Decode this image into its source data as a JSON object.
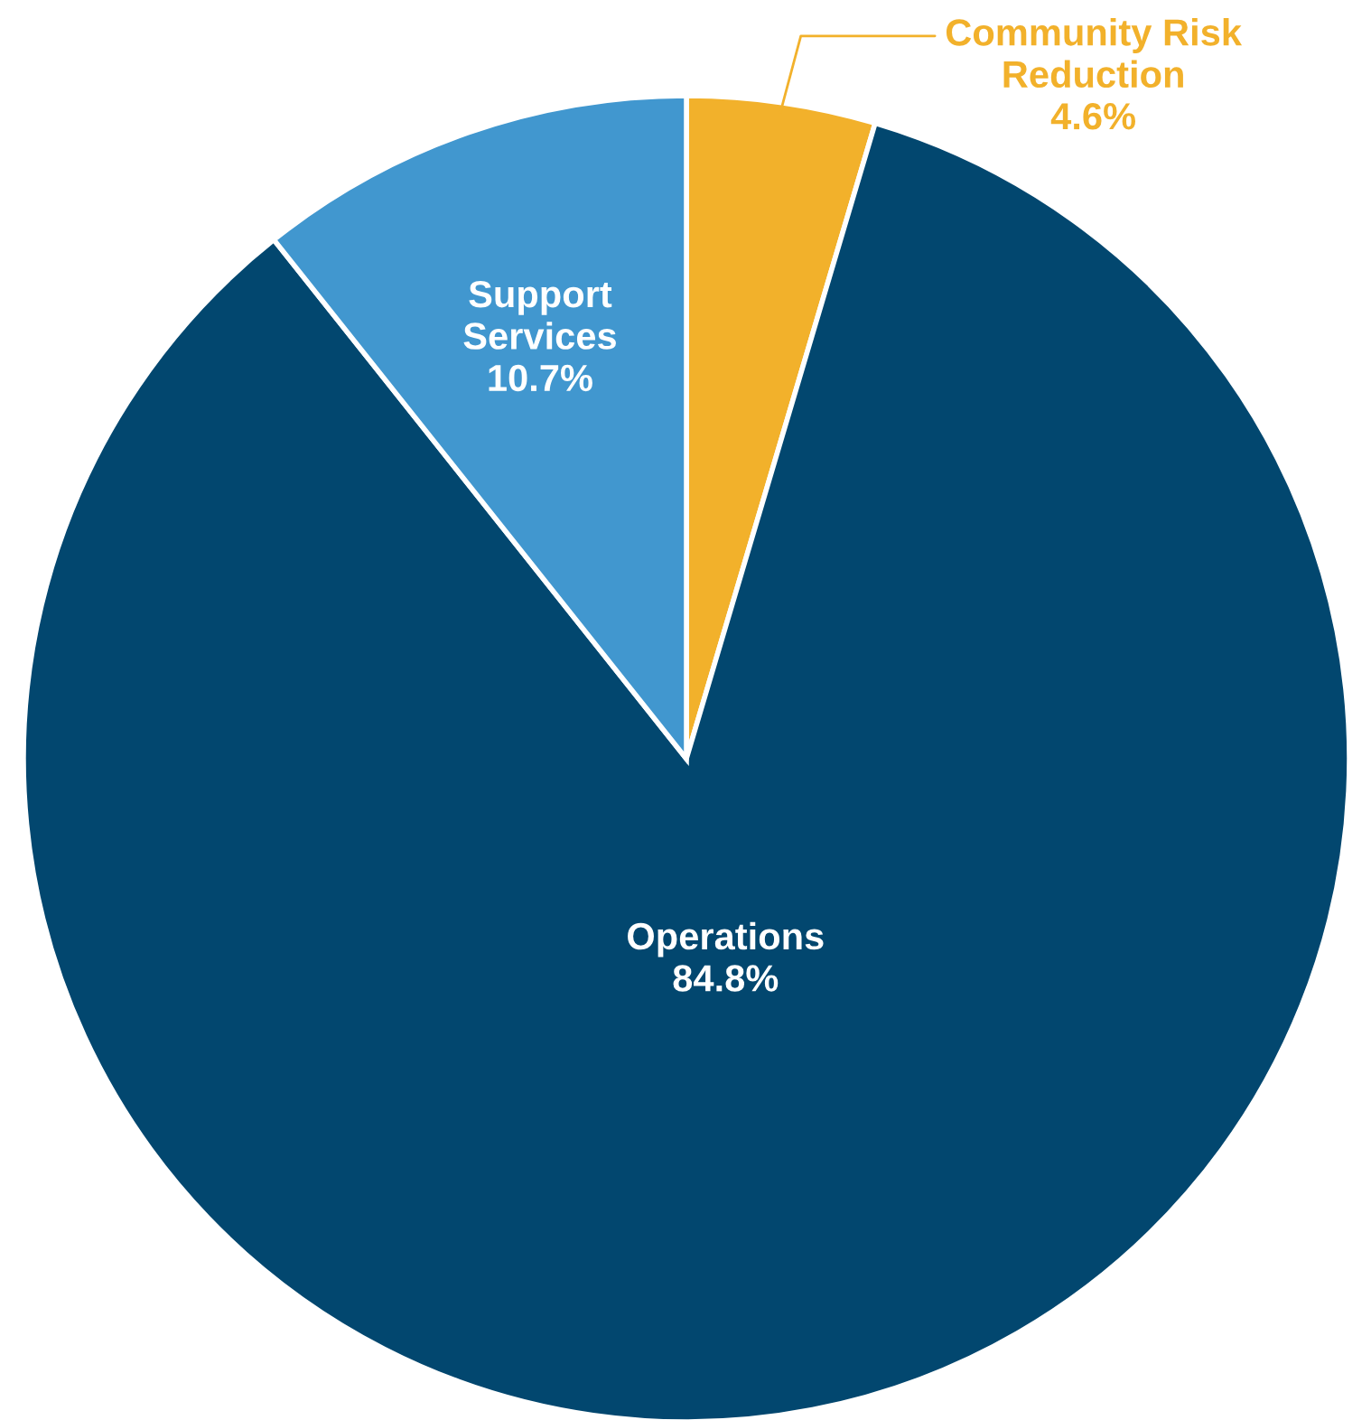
{
  "chart_data": {
    "type": "pie",
    "categories": [
      "Community Risk Reduction",
      "Operations",
      "Support Services"
    ],
    "values": [
      4.6,
      84.8,
      10.7
    ],
    "value_labels": [
      "4.6%",
      "84.8%",
      "10.7%"
    ],
    "colors": [
      "#f2b12b",
      "#02476f",
      "#4197cf"
    ],
    "legend": false
  }
}
